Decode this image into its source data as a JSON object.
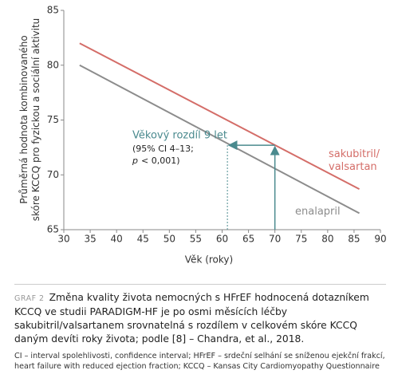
{
  "chart_data": {
    "type": "line",
    "x": [
      33,
      86
    ],
    "series": [
      {
        "name": [
          "sakubitril/",
          "valsartan"
        ],
        "color": "#d46d68",
        "values": [
          82,
          68.7
        ]
      },
      {
        "name": [
          "enalapril"
        ],
        "color": "#8c8c8c",
        "values": [
          80,
          66.5
        ]
      }
    ],
    "xlabel": "Věk (roky)",
    "ylabel": [
      "Průměrná hodnota kombinovaného",
      "skóre KCCQ pro fyzickou a sociální aktivitu"
    ],
    "xlim": [
      30,
      90
    ],
    "xticks": [
      30,
      35,
      40,
      45,
      50,
      55,
      60,
      65,
      70,
      75,
      80,
      85,
      90
    ],
    "ylim": [
      65,
      85
    ],
    "yticks": [
      65,
      70,
      75,
      80,
      85
    ],
    "annotation": {
      "title": "Věkový rozdíl 9 let",
      "lines": [
        "(95% CI 4–13;"
      ],
      "p_symbol": "p",
      "p_text": "< 0,001)",
      "x_from": 70,
      "x_to": 61,
      "y": 72.7,
      "color": "#4a8a8e"
    }
  },
  "caption": {
    "label": "GRAF 2",
    "text": "Změna kvality života nemocných s HFrEF hodnocená dotazníkem KCCQ ve studii PARADIGM-HF je po osmi měsících léčby sakubitril/valsartanem srovnatelná s rozdílem v celkovém skóre KCCQ daným devíti roky života; podle [8] – Chandra, et al., 2018.",
    "note": "CI – interval spolehlivosti, confidence interval; HFrEF – srdeční selhání se sníženou ejekční frakcí, heart failure with reduced ejection fraction; KCCQ – Kansas City Cardiomyopathy Questionnaire"
  }
}
